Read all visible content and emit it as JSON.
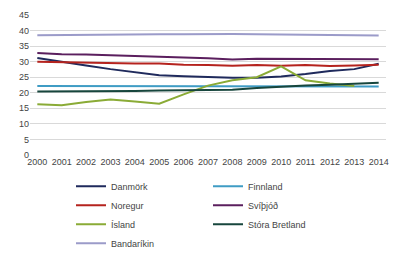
{
  "chart_data": {
    "type": "line",
    "categories": [
      "2000",
      "2001",
      "2002",
      "2003",
      "2004",
      "2005",
      "2006",
      "2007",
      "2008",
      "2009",
      "2010",
      "2011",
      "2012",
      "2013",
      "2014"
    ],
    "series": [
      {
        "name": "Danmörk",
        "color": "#1f2a5c",
        "values": [
          31.2,
          29.9,
          28.8,
          27.6,
          26.6,
          25.6,
          25.3,
          25.0,
          24.8,
          24.8,
          25.2,
          26.0,
          27.0,
          27.6,
          29.3
        ]
      },
      {
        "name": "Finnland",
        "color": "#3f9cc4",
        "values": [
          22.2,
          22.2,
          22.0,
          22.2,
          22.0,
          22.0,
          22.2,
          22.2,
          22.0,
          22.0,
          22.0,
          22.0,
          22.0,
          22.0,
          22.0
        ]
      },
      {
        "name": "Noregur",
        "color": "#b5231e",
        "values": [
          30.0,
          29.8,
          29.7,
          29.6,
          29.4,
          29.4,
          29.0,
          28.9,
          28.7,
          28.9,
          28.7,
          28.9,
          28.6,
          28.8,
          29.0
        ]
      },
      {
        "name": "Svíþjóð",
        "color": "#5b1f5e",
        "values": [
          32.8,
          32.4,
          32.3,
          32.0,
          31.8,
          31.6,
          31.3,
          31.1,
          30.7,
          30.9,
          30.9,
          30.8,
          31.0,
          31.0,
          30.8
        ]
      },
      {
        "name": "Ísland",
        "color": "#8aab36",
        "values": [
          16.3,
          16.0,
          17.0,
          17.8,
          17.2,
          16.5,
          19.5,
          22.3,
          24.0,
          25.0,
          28.5,
          24.0,
          23.0,
          22.2,
          null
        ]
      },
      {
        "name": "Stóra Bretland",
        "color": "#17463d",
        "values": [
          20.4,
          20.4,
          20.5,
          20.6,
          20.6,
          20.7,
          20.8,
          20.9,
          21.0,
          21.5,
          22.0,
          22.3,
          22.6,
          22.9,
          23.2
        ]
      },
      {
        "name": "Bandaríkin",
        "color": "#9b9bc9",
        "values": [
          38.5,
          38.6,
          38.7,
          38.7,
          38.8,
          38.8,
          38.8,
          38.9,
          38.9,
          38.8,
          38.7,
          38.7,
          38.6,
          38.5,
          38.4
        ]
      }
    ],
    "ylim": [
      0,
      45
    ],
    "yticks": [
      0,
      5,
      10,
      15,
      20,
      25,
      30,
      35,
      40,
      45
    ],
    "grid": true,
    "legend": "bottom"
  }
}
